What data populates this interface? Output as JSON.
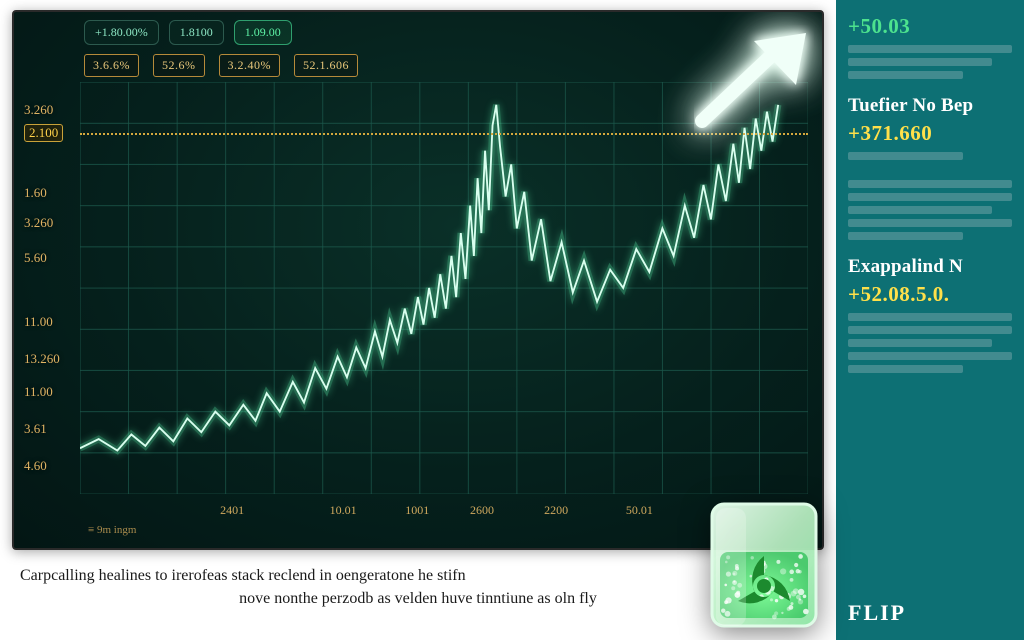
{
  "chart": {
    "type": "line",
    "background_gradient": [
      "#0a3028",
      "#05201c",
      "#031614"
    ],
    "grid_color": "#154a40",
    "grid_major_color": "#1d5a4d",
    "line_color": "#c8ffe6",
    "line_glow": "#5cf0ac",
    "line_width": 2,
    "xlim": [
      0,
      780
    ],
    "ylim": [
      0,
      18
    ],
    "ref_line": {
      "y": 15.8,
      "color": "#d6a93d",
      "style": "dotted"
    },
    "y_ticks": [
      {
        "v": 16.8,
        "label": "3.260"
      },
      {
        "v": 15.8,
        "label": "2.100",
        "hl": true
      },
      {
        "v": 13.2,
        "label": "1.60"
      },
      {
        "v": 11.9,
        "label": "3.260"
      },
      {
        "v": 10.4,
        "label": "5.60"
      },
      {
        "v": 7.6,
        "label": "11.00"
      },
      {
        "v": 6.0,
        "label": "13.260"
      },
      {
        "v": 4.6,
        "label": "11.00"
      },
      {
        "v": 3.0,
        "label": "3.61"
      },
      {
        "v": 1.4,
        "label": "4.60"
      }
    ],
    "x_ticks": [
      {
        "v": 160,
        "label": "2401"
      },
      {
        "v": 280,
        "label": "10.01"
      },
      {
        "v": 360,
        "label": "1001"
      },
      {
        "v": 430,
        "label": "2600"
      },
      {
        "v": 510,
        "label": "2200"
      },
      {
        "v": 600,
        "label": "50.01"
      }
    ],
    "x_note": "≡ 9m ingm",
    "series": [
      [
        0,
        2.0
      ],
      [
        20,
        2.4
      ],
      [
        40,
        1.9
      ],
      [
        55,
        2.6
      ],
      [
        70,
        2.1
      ],
      [
        85,
        2.9
      ],
      [
        100,
        2.3
      ],
      [
        115,
        3.3
      ],
      [
        130,
        2.7
      ],
      [
        145,
        3.6
      ],
      [
        160,
        3.0
      ],
      [
        175,
        3.9
      ],
      [
        188,
        3.2
      ],
      [
        200,
        4.4
      ],
      [
        214,
        3.6
      ],
      [
        228,
        4.9
      ],
      [
        240,
        4.0
      ],
      [
        252,
        5.5
      ],
      [
        264,
        4.6
      ],
      [
        276,
        6.0
      ],
      [
        286,
        5.1
      ],
      [
        296,
        6.4
      ],
      [
        306,
        5.5
      ],
      [
        316,
        7.1
      ],
      [
        324,
        6.0
      ],
      [
        332,
        7.6
      ],
      [
        340,
        6.6
      ],
      [
        348,
        8.1
      ],
      [
        355,
        7.0
      ],
      [
        362,
        8.6
      ],
      [
        368,
        7.4
      ],
      [
        374,
        9.0
      ],
      [
        380,
        7.7
      ],
      [
        386,
        9.6
      ],
      [
        392,
        8.1
      ],
      [
        398,
        10.4
      ],
      [
        403,
        8.6
      ],
      [
        408,
        11.4
      ],
      [
        413,
        9.4
      ],
      [
        418,
        12.6
      ],
      [
        422,
        10.4
      ],
      [
        426,
        13.8
      ],
      [
        430,
        11.4
      ],
      [
        434,
        15.0
      ],
      [
        438,
        12.4
      ],
      [
        442,
        16.1
      ],
      [
        446,
        17.0
      ],
      [
        450,
        15.2
      ],
      [
        456,
        13.0
      ],
      [
        462,
        14.4
      ],
      [
        468,
        11.6
      ],
      [
        476,
        13.2
      ],
      [
        484,
        10.2
      ],
      [
        494,
        12.0
      ],
      [
        504,
        9.3
      ],
      [
        516,
        11.0
      ],
      [
        528,
        8.8
      ],
      [
        540,
        10.2
      ],
      [
        554,
        8.4
      ],
      [
        568,
        9.8
      ],
      [
        582,
        9.0
      ],
      [
        596,
        10.7
      ],
      [
        610,
        9.7
      ],
      [
        624,
        11.6
      ],
      [
        636,
        10.4
      ],
      [
        648,
        12.6
      ],
      [
        658,
        11.2
      ],
      [
        668,
        13.5
      ],
      [
        676,
        12.0
      ],
      [
        684,
        14.4
      ],
      [
        692,
        12.8
      ],
      [
        700,
        15.3
      ],
      [
        706,
        13.6
      ],
      [
        712,
        16.0
      ],
      [
        718,
        14.2
      ],
      [
        724,
        16.4
      ],
      [
        730,
        15.0
      ],
      [
        736,
        16.7
      ],
      [
        742,
        15.4
      ],
      [
        748,
        17.0
      ]
    ],
    "top_pills": [
      {
        "text": "+1.80.00%",
        "accent": false
      },
      {
        "text": "1.8100",
        "accent": false
      },
      {
        "text": "1.09.00",
        "accent": true
      }
    ],
    "sec_pills": [
      "3.6.6%",
      "52.6%",
      "3.2.40%",
      "52.1.606"
    ]
  },
  "article": {
    "line1": "Carpcalling healines to irerofeas stack reclend in oengeratone he stifn",
    "line2": "nove nonthe perzodb as velden huve tinntiune as oln fly"
  },
  "sidebar": {
    "top_val": "+50.03",
    "block1": {
      "title": "Tuefier No Bep",
      "value": "+371.660"
    },
    "block2": {
      "title": "Exappalind N",
      "value": "+52.08.5.0."
    },
    "footer": "FLIP"
  },
  "icons": {
    "radioactive_color": "#1c8a2e",
    "cube_glass": "#bff7c9"
  }
}
